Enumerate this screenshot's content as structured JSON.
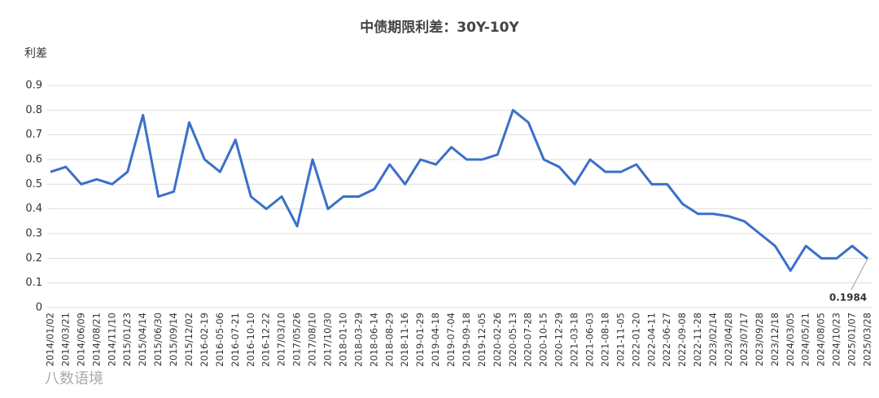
{
  "chart_data": {
    "type": "line",
    "title": "中债期限利差：30Y-10Y",
    "y_label": "利差",
    "watermark": "八数语境",
    "categories": [
      "2014/01/02",
      "2014/03/21",
      "2014/06/09",
      "2014/08/21",
      "2014/11/10",
      "2015/01/23",
      "2015/04/14",
      "2015/06/30",
      "2015/09/14",
      "2015/12/02",
      "2016-02-19",
      "2016-05-06",
      "2016-07-21",
      "2016-10-10",
      "2016-12-22",
      "2017/03/10",
      "2017/05/26",
      "2017/08/10",
      "2017/10/30",
      "2018-01-10",
      "2018-03-29",
      "2018-06-14",
      "2018-08-29",
      "2018-11-16",
      "2019-01-29",
      "2019-04-18",
      "2019-07-04",
      "2019-09-18",
      "2019-12-05",
      "2020-02-26",
      "2020-05-13",
      "2020-07-28",
      "2020-10-15",
      "2020-12-29",
      "2021-03-18",
      "2021-06-03",
      "2021-08-18",
      "2021-11-05",
      "2022-01-20",
      "2022-04-11",
      "2022-06-27",
      "2022-09-08",
      "2022-11-28",
      "2023/02/14",
      "2023/04/28",
      "2023/07/17",
      "2023/09/28",
      "2023/12/18",
      "2024/03/05",
      "2024/05/21",
      "2024/08/05",
      "2024/10/23",
      "2025/01/07",
      "2025/03/28"
    ],
    "series": [
      {
        "name": "30Y-10Y",
        "color": "#3a70c9",
        "values": [
          0.55,
          0.57,
          0.5,
          0.52,
          0.5,
          0.55,
          0.78,
          0.45,
          0.47,
          0.75,
          0.6,
          0.55,
          0.68,
          0.45,
          0.4,
          0.45,
          0.33,
          0.6,
          0.4,
          0.45,
          0.45,
          0.48,
          0.58,
          0.5,
          0.6,
          0.58,
          0.65,
          0.6,
          0.6,
          0.62,
          0.8,
          0.75,
          0.6,
          0.57,
          0.5,
          0.6,
          0.55,
          0.55,
          0.58,
          0.5,
          0.5,
          0.42,
          0.38,
          0.38,
          0.37,
          0.35,
          0.3,
          0.25,
          0.15,
          0.25,
          0.2,
          0.2,
          0.25,
          0.1984
        ]
      }
    ],
    "ylim": [
      0,
      0.9
    ],
    "yticks": [
      0,
      0.1,
      0.2,
      0.3,
      0.4,
      0.5,
      0.6,
      0.7,
      0.8,
      0.9
    ],
    "grid": true
  }
}
